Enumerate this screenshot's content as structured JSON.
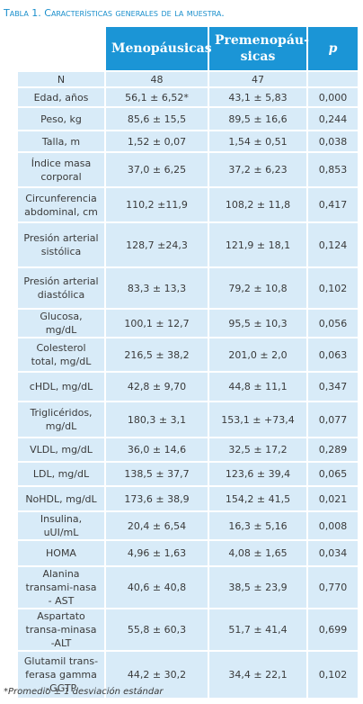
{
  "title": "Tabla 1. Características generales de la muestra.",
  "table": {
    "header": [
      "Menopáusicas",
      "Premenopáu-sicas",
      "p"
    ],
    "rows": [
      [
        "N",
        "48",
        "47",
        null
      ],
      [
        "Edad, años",
        "56,1 ± 6,52*",
        "43,1 ± 5,83",
        "0,000"
      ],
      [
        "Peso, kg",
        "85,6 ± 15,5",
        "89,5 ± 16,6",
        "0,244"
      ],
      [
        "Talla, m",
        "1,52 ± 0,07",
        "1,54 ± 0,51",
        "0,038"
      ],
      [
        "Índice masa corporal",
        "37,0 ± 6,25",
        "37,2 ± 6,23",
        "0,853"
      ],
      [
        "Circunferencia abdominal, cm",
        "110,2 ±11,9",
        "108,2 ± 11,8",
        "0,417"
      ],
      [
        "Presión arterial sistólica",
        "128,7 ±24,3",
        "121,9 ± 18,1",
        "0,124"
      ],
      [
        "Presión arterial diastólica",
        "83,3 ± 13,3",
        "79,2 ± 10,8",
        "0,102"
      ],
      [
        "Glucosa, mg/dL",
        "100,1 ± 12,7",
        "95,5 ± 10,3",
        "0,056"
      ],
      [
        "Colesterol total, mg/dL",
        "216,5 ± 38,2",
        "201,0 ± 2,0",
        "0,063"
      ],
      [
        "cHDL, mg/dL",
        "42,8 ± 9,70",
        "44,8 ± 11,1",
        "0,347"
      ],
      [
        "Triglicéridos, mg/dL",
        "180,3 ± 3,1",
        "153,1 ± +73,4",
        "0,077"
      ],
      [
        "VLDL, mg/dL",
        "36,0 ± 14,6",
        "32,5 ± 17,2",
        "0,289"
      ],
      [
        "LDL, mg/dL",
        "138,5 ± 37,7",
        "123,6 ± 39,4",
        "0,065"
      ],
      [
        "NoHDL, mg/dL",
        "173,6 ± 38,9",
        "154,2 ± 41,5",
        "0,021"
      ],
      [
        "Insulina, uUI/mL",
        "20,4 ± 6,54",
        "16,3 ± 5,16",
        "0,008"
      ],
      [
        "HOMA",
        "4,96 ± 1,63",
        "4,08 ± 1,65",
        "0,034"
      ],
      [
        "Alanina transami-nasa - AST",
        "40,6 ± 40,8",
        "38,5 ± 23,9",
        "0,770"
      ],
      [
        "Aspartato transa-minasa -ALT",
        "55,8 ± 60,3",
        "51,7 ± 41,4",
        "0,699"
      ],
      [
        "Glutamil trans-ferasa gamma -GGTP",
        "44,2 ± 30,2",
        "34,4 ± 22,1",
        "0,102"
      ]
    ]
  },
  "footnote": "*Promedio ± 1 desviación estándar"
}
